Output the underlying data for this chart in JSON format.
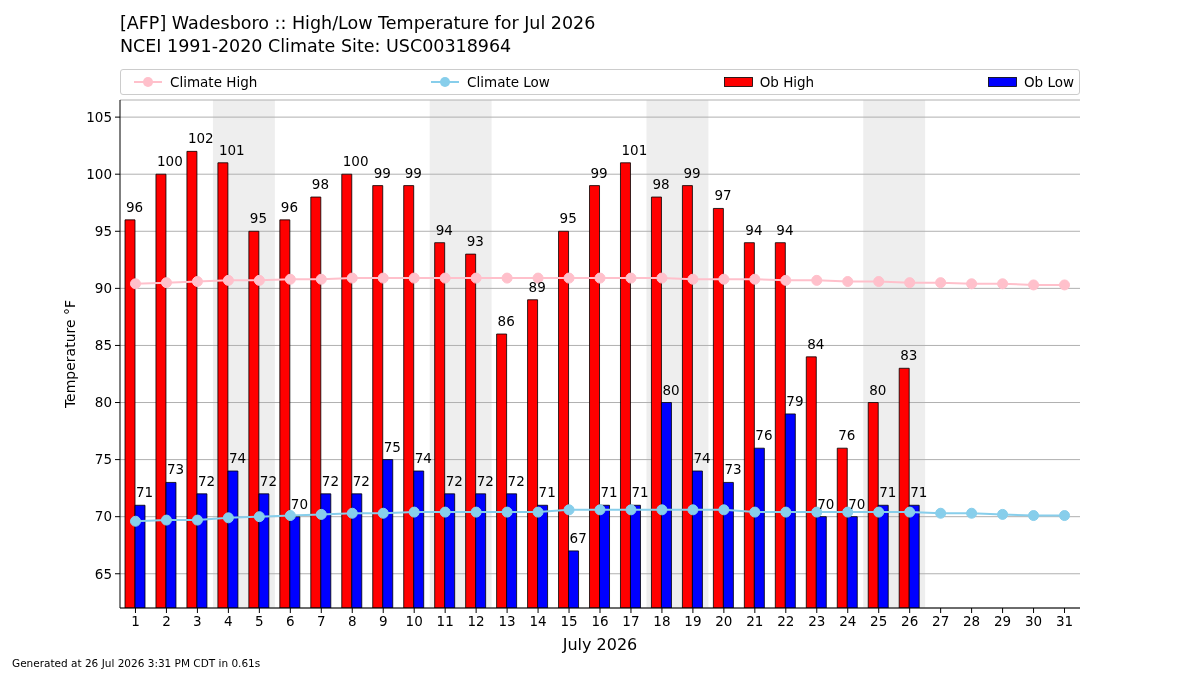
{
  "chart_data": {
    "type": "bar",
    "title": "[AFP] Wadesboro :: High/Low Temperature for Jul 2026",
    "subtitle": "NCEI 1991-2020 Climate Site: USC00318964",
    "xlabel": "July 2026",
    "ylabel": "Temperature °F",
    "annotations": [
      "Generated at 26 Jul 2026 3:31 PM CDT in 0.61s"
    ],
    "x": [
      1,
      2,
      3,
      4,
      5,
      6,
      7,
      8,
      9,
      10,
      11,
      12,
      13,
      14,
      15,
      16,
      17,
      18,
      19,
      20,
      21,
      22,
      23,
      24,
      25,
      26,
      27,
      28,
      29,
      30,
      31
    ],
    "series": [
      {
        "name": "Climate High",
        "type": "line",
        "color": "#ffc0cb",
        "values": [
          90.4,
          90.5,
          90.6,
          90.7,
          90.7,
          90.8,
          90.8,
          90.9,
          90.9,
          90.9,
          90.9,
          90.9,
          90.9,
          90.9,
          90.9,
          90.9,
          90.9,
          90.9,
          90.8,
          90.8,
          90.8,
          90.7,
          90.7,
          90.6,
          90.6,
          90.5,
          90.5,
          90.4,
          90.4,
          90.3,
          90.3
        ]
      },
      {
        "name": "Climate Low",
        "type": "line",
        "color": "#87ceeb",
        "values": [
          69.6,
          69.7,
          69.7,
          69.9,
          70.0,
          70.1,
          70.2,
          70.3,
          70.3,
          70.4,
          70.4,
          70.4,
          70.4,
          70.4,
          70.6,
          70.6,
          70.6,
          70.6,
          70.6,
          70.6,
          70.4,
          70.4,
          70.4,
          70.4,
          70.4,
          70.4,
          70.3,
          70.3,
          70.2,
          70.1,
          70.1
        ]
      },
      {
        "name": "Ob High",
        "color": "#ff0000",
        "values": [
          96,
          100,
          102,
          101,
          95,
          96,
          98,
          100,
          99,
          99,
          94,
          93,
          86,
          89,
          95,
          99,
          101,
          98,
          99,
          97,
          94,
          94,
          84,
          76,
          80,
          83,
          null,
          null,
          null,
          null,
          null
        ],
        "value_labels": [
          "96",
          "100",
          "102",
          "101",
          "95",
          "96",
          "98",
          "100",
          "99",
          "99",
          "94",
          "93",
          "86",
          "89",
          "95",
          "99",
          "101",
          "98",
          "99",
          "97",
          "94",
          "94",
          "84",
          "76",
          "80",
          "83",
          null,
          null,
          null,
          null,
          null
        ]
      },
      {
        "name": "Ob Low",
        "color": "#0000ff",
        "values": [
          71,
          73,
          72,
          74,
          72,
          70,
          72,
          72,
          75,
          74,
          72,
          72,
          72,
          71,
          67,
          71,
          71,
          80,
          74,
          73,
          76,
          79,
          70,
          70,
          71,
          71,
          null,
          null,
          null,
          null,
          null
        ],
        "value_labels": [
          "71",
          "73",
          "72",
          "74",
          "72",
          "70",
          "72",
          "72",
          "75",
          "74",
          "72",
          "72",
          "72",
          "71",
          "67",
          "71",
          "71",
          "80",
          "74",
          "73",
          "76",
          "79",
          "70",
          "70",
          "71",
          "71",
          null,
          null,
          null,
          null,
          null
        ]
      }
    ],
    "xlim": [
      0.5,
      31.5
    ],
    "xticks": [
      1,
      2,
      3,
      4,
      5,
      6,
      7,
      8,
      9,
      10,
      11,
      12,
      13,
      14,
      15,
      16,
      17,
      18,
      19,
      20,
      21,
      22,
      23,
      24,
      25,
      26,
      27,
      28,
      29,
      30,
      31
    ],
    "ylim": [
      62,
      106.5
    ],
    "yticks": [
      65,
      70,
      75,
      80,
      85,
      90,
      95,
      100,
      105
    ],
    "bands": [
      {
        "axis": "x",
        "from": 3.5,
        "to": 5.5,
        "color": "#eeeeee"
      },
      {
        "axis": "x",
        "from": 10.5,
        "to": 12.5,
        "color": "#eeeeee"
      },
      {
        "axis": "x",
        "from": 17.5,
        "to": 19.5,
        "color": "#eeeeee"
      },
      {
        "axis": "x",
        "from": 24.5,
        "to": 26.5,
        "color": "#eeeeee"
      }
    ],
    "grid": "y",
    "legend": "top",
    "marker": "circle"
  }
}
